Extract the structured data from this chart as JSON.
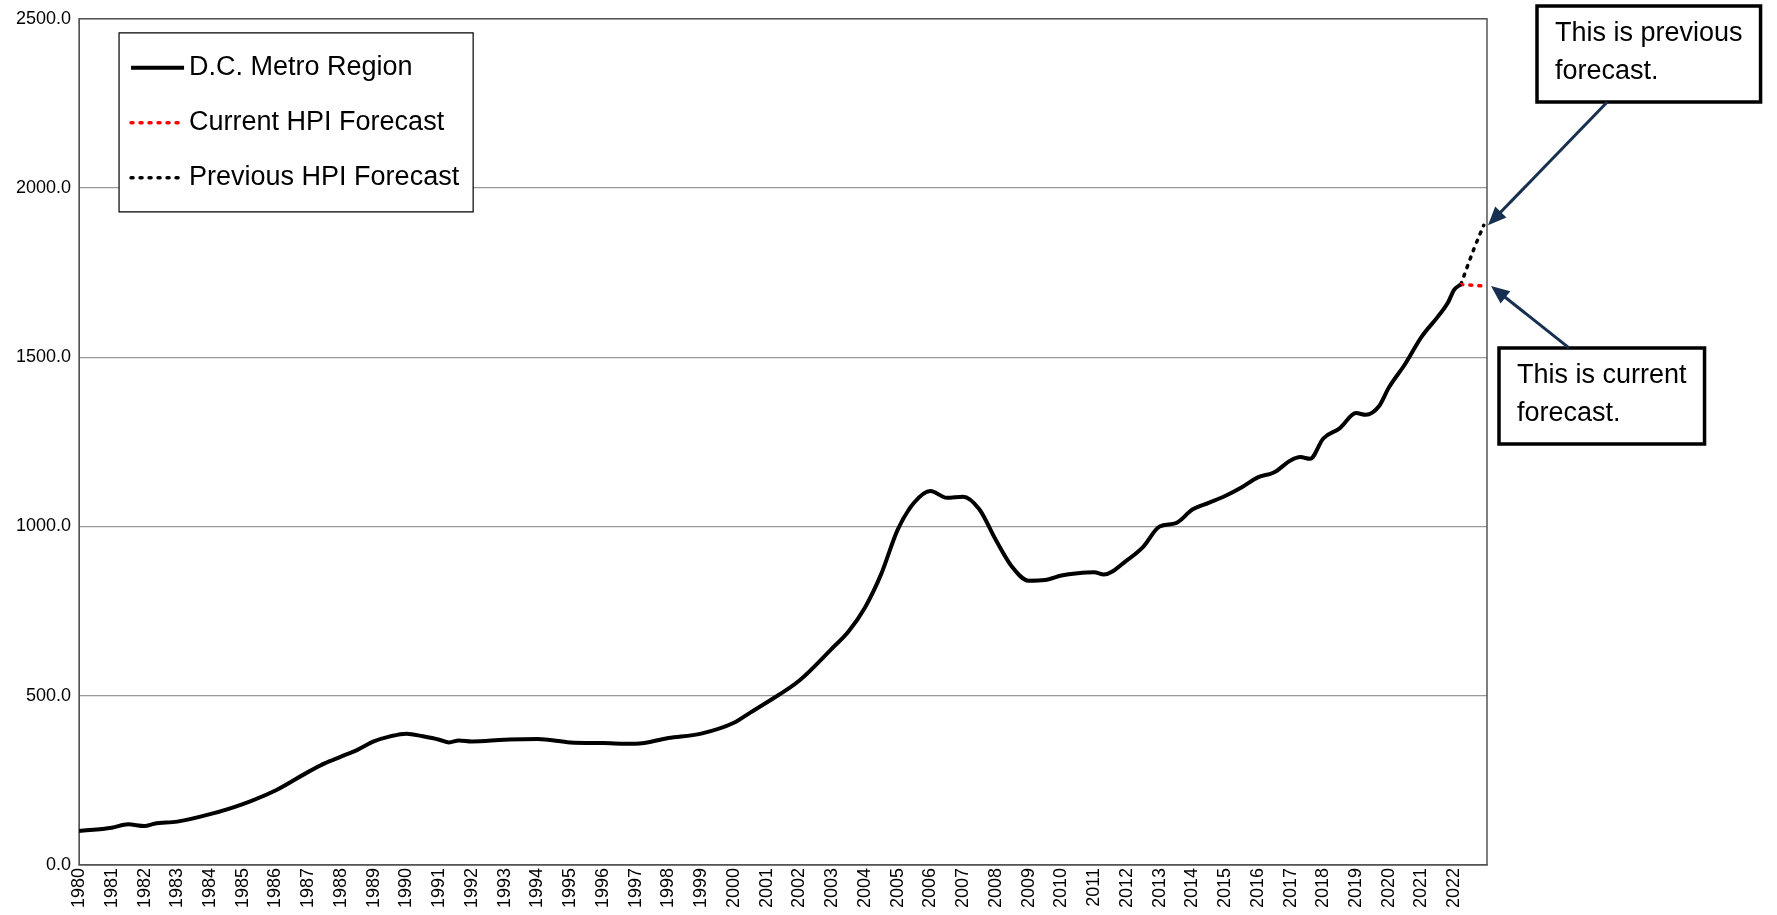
{
  "chart_data": {
    "type": "line",
    "xlim": [
      1980,
      2023
    ],
    "xticks": [
      1980,
      1981,
      1982,
      1983,
      1984,
      1985,
      1986,
      1987,
      1988,
      1989,
      1990,
      1991,
      1992,
      1993,
      1994,
      1995,
      1996,
      1997,
      1998,
      1999,
      2000,
      2001,
      2002,
      2003,
      2004,
      2005,
      2006,
      2007,
      2008,
      2009,
      2010,
      2011,
      2012,
      2013,
      2014,
      2015,
      2016,
      2017,
      2018,
      2019,
      2020,
      2021,
      2022
    ],
    "ylim": [
      0,
      2500
    ],
    "yticks": [
      {
        "value": 0,
        "label": "0.0"
      },
      {
        "value": 500,
        "label": "500.0"
      },
      {
        "value": 1000,
        "label": "1000.0"
      },
      {
        "value": 1500,
        "label": "1500.0"
      },
      {
        "value": 2000,
        "label": "2000.0"
      },
      {
        "value": 2500,
        "label": "2500.0"
      }
    ],
    "grid": "y",
    "legend": "top left",
    "marker": "none",
    "series": [
      {
        "name": "D.C. Metro Region",
        "color": "#000000",
        "line_style": "solid",
        "x": [
          1980,
          1981,
          1981.5,
          1982,
          1982.3,
          1983,
          1984,
          1985,
          1986,
          1987,
          1987.5,
          1988,
          1988.5,
          1989,
          1989.5,
          1990,
          1990.5,
          1991,
          1991.3,
          1991.6,
          1992,
          1993,
          1994,
          1995,
          1996,
          1997,
          1998,
          1999,
          2000,
          2000.5,
          2001,
          2002,
          2003,
          2003.5,
          2004,
          2004.5,
          2005,
          2005.5,
          2006,
          2006.5,
          2007,
          2007.5,
          2008,
          2008.5,
          2009,
          2009.5,
          2010,
          2010.5,
          2011,
          2011.3,
          2012,
          2012.5,
          2013,
          2013.5,
          2014,
          2014.5,
          2015,
          2015.5,
          2016,
          2016.5,
          2017,
          2017.3,
          2017.6,
          2018,
          2018.5,
          2019,
          2019.3,
          2019.7,
          2020,
          2020.5,
          2021,
          2021.5,
          2021.8,
          2022,
          2022.2
        ],
        "values": [
          100,
          110,
          120,
          115,
          122,
          128,
          150,
          180,
          220,
          275,
          300,
          320,
          340,
          365,
          380,
          388,
          380,
          370,
          362,
          368,
          365,
          370,
          372,
          362,
          360,
          358,
          375,
          388,
          420,
          450,
          480,
          545,
          640,
          690,
          760,
          860,
          990,
          1070,
          1105,
          1085,
          1088,
          1050,
          960,
          880,
          840,
          842,
          855,
          862,
          865,
          858,
          900,
          940,
          1000,
          1010,
          1050,
          1070,
          1090,
          1115,
          1145,
          1160,
          1195,
          1205,
          1200,
          1260,
          1290,
          1335,
          1330,
          1355,
          1410,
          1480,
          1560,
          1620,
          1660,
          1700,
          1715
        ]
      },
      {
        "name": "Current HPI Forecast",
        "color": "#ff0000",
        "line_style": "dotted",
        "x": [
          2022.2,
          2023
        ],
        "values": [
          1715,
          1710
        ]
      },
      {
        "name": "Previous HPI Forecast",
        "color": "#000000",
        "line_style": "dotted",
        "x": [
          2022.2,
          2022.6,
          2022.9
        ],
        "values": [
          1715,
          1820,
          1890
        ]
      }
    ],
    "annotations": [
      "This is previous forecast.",
      "This is current forecast."
    ]
  }
}
